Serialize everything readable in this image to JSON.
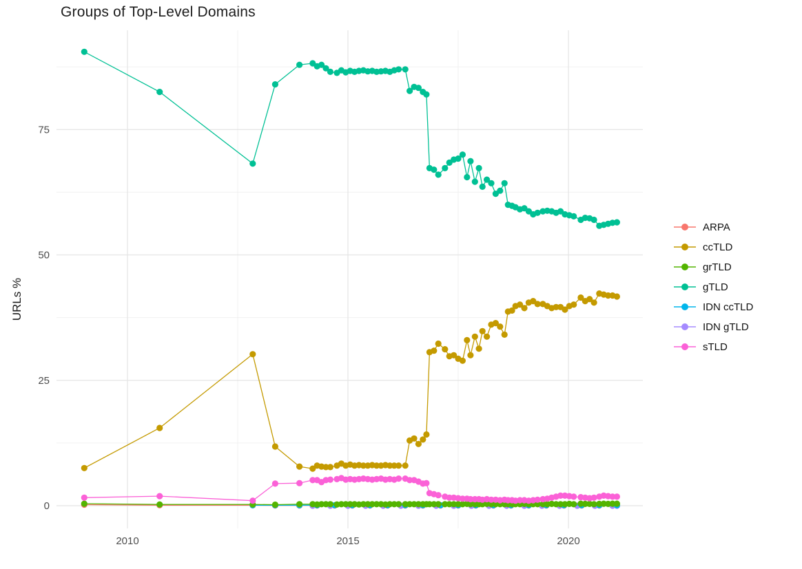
{
  "chart_data": {
    "type": "line",
    "title": "Groups of Top-Level Domains",
    "xlabel": "",
    "ylabel": "URLs %",
    "marker": "circle",
    "grid": true,
    "legend_position": "right",
    "x_axis": {
      "major_ticks": [
        2010,
        2015,
        2020
      ],
      "tick_labels": [
        "2010",
        "2015",
        "2020"
      ],
      "minor_ticks": [
        2012.5,
        2017.5
      ],
      "range": [
        2008.4,
        2021.7
      ]
    },
    "y_axis": {
      "major_ticks": [
        0,
        25,
        50,
        75
      ],
      "tick_labels": [
        "0",
        "25",
        "50",
        "75"
      ],
      "minor_ticks": [
        12.5,
        37.5,
        62.5,
        87.5
      ],
      "range": [
        -4.6,
        95
      ]
    },
    "colors": {
      "grid_major": "#E4E4E4",
      "grid_minor": "#F0F0F0",
      "tick_text": "#4d4d4d"
    },
    "x_dense": [
      2013.35,
      2013.9,
      2014.2,
      2014.3,
      2014.4,
      2014.5,
      2014.6,
      2014.75,
      2014.85,
      2014.95,
      2015.05,
      2015.15,
      2015.25,
      2015.35,
      2015.45,
      2015.55,
      2015.65,
      2015.75,
      2015.85,
      2015.95,
      2016.05,
      2016.15,
      2016.3,
      2016.4,
      2016.5,
      2016.6,
      2016.7,
      2016.78,
      2016.85,
      2016.95,
      2017.05,
      2017.2,
      2017.3,
      2017.4,
      2017.5,
      2017.6,
      2017.7,
      2017.78,
      2017.88,
      2017.97,
      2018.05,
      2018.15,
      2018.25,
      2018.35,
      2018.45,
      2018.55,
      2018.63,
      2018.72,
      2018.8,
      2018.9,
      2019.0,
      2019.1,
      2019.2,
      2019.3,
      2019.42,
      2019.52,
      2019.62,
      2019.72,
      2019.82,
      2019.92,
      2020.02,
      2020.12,
      2020.28,
      2020.38,
      2020.48,
      2020.58,
      2020.7,
      2020.8,
      2020.9,
      2021.0,
      2021.1
    ],
    "draw_order": [
      0,
      5,
      4,
      2,
      1,
      3,
      6
    ],
    "series": [
      {
        "name": "ARPA",
        "color": "#F8766D",
        "points": [
          [
            2009.02,
            0.2
          ],
          [
            2010.73,
            0.1
          ],
          [
            2012.84,
            0.08
          ],
          [
            2013.35,
            0.05
          ],
          [
            2013.9,
            0.05
          ],
          [
            2014.3,
            0.05
          ],
          [
            2014.7,
            0.05
          ],
          [
            2015.1,
            0.05
          ],
          [
            2015.5,
            0.05
          ],
          [
            2015.9,
            0.05
          ],
          [
            2016.3,
            0.05
          ],
          [
            2016.7,
            0.05
          ],
          [
            2017.1,
            0.05
          ],
          [
            2017.5,
            0.05
          ],
          [
            2017.9,
            0.05
          ],
          [
            2018.3,
            0.05
          ],
          [
            2018.7,
            0.05
          ],
          [
            2019.1,
            0.05
          ],
          [
            2019.5,
            0.05
          ],
          [
            2019.9,
            0.05
          ],
          [
            2020.3,
            0.05
          ],
          [
            2020.7,
            0.05
          ],
          [
            2021.1,
            0.05
          ]
        ]
      },
      {
        "name": "ccTLD",
        "color": "#C49A00",
        "points": [
          [
            2009.02,
            7.5
          ],
          [
            2010.73,
            15.5
          ],
          [
            2012.84,
            30.2
          ]
        ],
        "dense_y": [
          11.8,
          7.8,
          7.4,
          8,
          7.8,
          7.7,
          7.7,
          8,
          8.4,
          8,
          8.2,
          8,
          8.1,
          8,
          8,
          8.1,
          8,
          8,
          8.1,
          8,
          8,
          8,
          8,
          13,
          13.4,
          12.3,
          13.2,
          14.2,
          30.6,
          30.9,
          32.3,
          31.2,
          29.8,
          30,
          29.3,
          28.9,
          33,
          30,
          33.7,
          31.3,
          34.8,
          33.7,
          36.1,
          36.4,
          35.7,
          34.1,
          38.7,
          38.9,
          39.8,
          40.1,
          39.4,
          40.5,
          40.8,
          40.2,
          40.2,
          39.8,
          39.4,
          39.6,
          39.6,
          39.1,
          39.8,
          40.1,
          41.5,
          40.8,
          41.2,
          40.5,
          42.3,
          42.1,
          41.9,
          41.9,
          41.7
        ]
      },
      {
        "name": "grTLD",
        "color": "#53B400",
        "points": [
          [
            2009.02,
            0.4
          ],
          [
            2010.73,
            0.25
          ],
          [
            2012.84,
            0.25
          ]
        ],
        "dense_y": [
          0.2,
          0.3,
          0.3,
          0.25,
          0.3,
          0.3,
          0.3,
          0.25,
          0.3,
          0.3,
          0.3,
          0.3,
          0.25,
          0.3,
          0.3,
          0.3,
          0.3,
          0.3,
          0.25,
          0.3,
          0.3,
          0.3,
          0.3,
          0.3,
          0.3,
          0.3,
          0.3,
          0.3,
          0.3,
          0.3,
          0.3,
          0.3,
          0.3,
          0.3,
          0.3,
          0.3,
          0.35,
          0.3,
          0.3,
          0.3,
          0.3,
          0.35,
          0.3,
          0.3,
          0.3,
          0.3,
          0.3,
          0.3,
          0.3,
          0.3,
          0.35,
          0.3,
          0.3,
          0.3,
          0.3,
          0.3,
          0.35,
          0.3,
          0.3,
          0.3,
          0.35,
          0.3,
          0.4,
          0.35,
          0.35,
          0.3,
          0.35,
          0.4,
          0.35,
          0.4,
          0.4
        ]
      },
      {
        "name": "gTLD",
        "color": "#00C094",
        "points": [
          [
            2009.02,
            90.5
          ],
          [
            2010.73,
            82.5
          ],
          [
            2012.84,
            68.2
          ]
        ],
        "dense_y": [
          84,
          87.9,
          88.2,
          87.6,
          87.9,
          87.2,
          86.5,
          86.3,
          86.8,
          86.4,
          86.7,
          86.5,
          86.7,
          86.8,
          86.6,
          86.7,
          86.5,
          86.6,
          86.7,
          86.5,
          86.8,
          87,
          87,
          82.7,
          83.5,
          83.3,
          82.5,
          82,
          67.3,
          67,
          66,
          67.3,
          68.4,
          69,
          69.2,
          70,
          65.5,
          68.7,
          64.6,
          67.3,
          63.6,
          65,
          64.3,
          62.2,
          62.8,
          64.3,
          60,
          59.8,
          59.5,
          59.1,
          59.3,
          58.7,
          58.1,
          58.4,
          58.7,
          58.8,
          58.7,
          58.4,
          58.7,
          58.1,
          57.9,
          57.7,
          57,
          57.4,
          57.3,
          57,
          55.8,
          56,
          56.2,
          56.4,
          56.5
        ]
      },
      {
        "name": "IDN ccTLD",
        "color": "#00B6EB",
        "points": [
          [
            2012.84,
            0.1
          ],
          [
            2013.35,
            0.1
          ],
          [
            2013.9,
            0.1
          ],
          [
            2014.3,
            0.1
          ],
          [
            2014.7,
            0.1
          ],
          [
            2015.1,
            0.1
          ],
          [
            2015.5,
            0.1
          ],
          [
            2015.9,
            0.1
          ],
          [
            2016.3,
            0.1
          ],
          [
            2016.7,
            0.1
          ],
          [
            2017.1,
            0.1
          ],
          [
            2017.5,
            0.1
          ],
          [
            2017.9,
            0.1
          ],
          [
            2018.3,
            0.1
          ],
          [
            2018.7,
            0.1
          ],
          [
            2019.1,
            0.1
          ],
          [
            2019.5,
            0.1
          ],
          [
            2019.9,
            0.1
          ],
          [
            2020.3,
            0.1
          ],
          [
            2020.7,
            0.1
          ],
          [
            2021.1,
            0.1
          ]
        ]
      },
      {
        "name": "IDN gTLD",
        "color": "#A58AFF",
        "points": [
          [
            2014.2,
            0
          ],
          [
            2014.6,
            0
          ],
          [
            2015,
            0
          ],
          [
            2015.4,
            0
          ],
          [
            2015.8,
            0
          ],
          [
            2016.2,
            0
          ],
          [
            2016.6,
            0
          ],
          [
            2017,
            0
          ],
          [
            2017.4,
            0
          ],
          [
            2017.8,
            0
          ],
          [
            2018.2,
            0
          ],
          [
            2018.6,
            0
          ],
          [
            2019,
            0
          ],
          [
            2019.4,
            0
          ],
          [
            2019.8,
            0
          ],
          [
            2020.2,
            0
          ],
          [
            2020.6,
            0
          ],
          [
            2021,
            0
          ],
          [
            2021.1,
            0
          ]
        ]
      },
      {
        "name": "sTLD",
        "color": "#FB61D7",
        "points": [
          [
            2009.02,
            1.6
          ],
          [
            2010.73,
            1.9
          ],
          [
            2012.84,
            1
          ]
        ],
        "dense_y": [
          4.4,
          4.5,
          5.1,
          5.1,
          4.7,
          5.1,
          5.2,
          5.3,
          5.5,
          5.2,
          5.3,
          5.2,
          5.3,
          5.4,
          5.3,
          5.2,
          5.3,
          5.4,
          5.2,
          5.3,
          5.2,
          5.4,
          5.4,
          5.1,
          5.1,
          4.8,
          4.4,
          4.5,
          2.5,
          2.3,
          2.1,
          1.8,
          1.6,
          1.6,
          1.5,
          1.4,
          1.4,
          1.3,
          1.3,
          1.3,
          1.2,
          1.3,
          1.2,
          1.2,
          1.1,
          1.2,
          1.1,
          1.1,
          1,
          1.1,
          1.1,
          1,
          1.1,
          1.2,
          1.3,
          1.4,
          1.6,
          1.8,
          2,
          2,
          1.9,
          1.8,
          1.7,
          1.6,
          1.5,
          1.6,
          1.8,
          2,
          1.9,
          1.8,
          1.8
        ]
      }
    ]
  }
}
